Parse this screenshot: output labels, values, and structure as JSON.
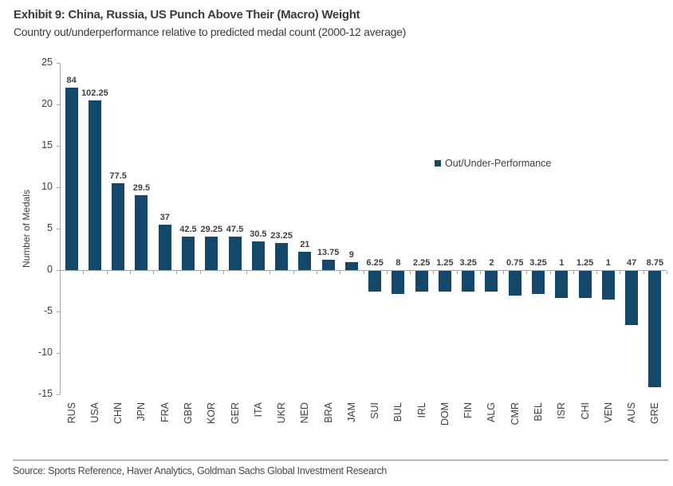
{
  "header": {
    "title": "Exhibit 9: China, Russia, US Punch Above Their (Macro) Weight",
    "subtitle": "Country out/underperformance relative to predicted medal count (2000-12 average)"
  },
  "chart_data": {
    "type": "bar",
    "title": "Exhibit 9: China, Russia, US Punch Above Their (Macro) Weight",
    "subtitle": "Country out/underperformance relative to predicted medal count (2000-12 average)",
    "categories": [
      "RUS",
      "USA",
      "CHN",
      "JPN",
      "FRA",
      "GBR",
      "KOR",
      "GER",
      "ITA",
      "UKR",
      "NED",
      "BRA",
      "JAM",
      "SUI",
      "BUL",
      "IRL",
      "DOM",
      "FIN",
      "ALG",
      "CMR",
      "BEL",
      "ISR",
      "CHI",
      "VEN",
      "AUS",
      "GRE"
    ],
    "values": [
      22,
      20.5,
      10.5,
      9,
      5.5,
      4,
      4,
      4,
      3.5,
      3.25,
      2.25,
      1.25,
      1,
      -2.5,
      -2.75,
      -2.5,
      -2.5,
      -2.5,
      -2.5,
      -3,
      -2.75,
      -3.25,
      -3.25,
      -3.5,
      -6.5,
      -14
    ],
    "data_labels": [
      "84",
      "102.25",
      "77.5",
      "29.5",
      "37",
      "42.5",
      "29.25",
      "47.5",
      "30.5",
      "23.25",
      "21",
      "13.75",
      "9",
      "6.25",
      "8",
      "2.25",
      "1.25",
      "3.25",
      "2",
      "0.75",
      "3.25",
      "1",
      "1.25",
      "1",
      "47",
      "8.75"
    ],
    "series_name": "Out/Under-Performance",
    "xlabel": "",
    "ylabel": "Number of Medals",
    "ylim": [
      -15,
      25
    ],
    "ytick_step": 5,
    "yticks": [
      25,
      20,
      15,
      10,
      5,
      0,
      -5,
      -10,
      -15
    ],
    "grid": false,
    "legend_position": "center-right",
    "bar_color": "#14486b",
    "label_note": "data labels show actual medal counts; bars show out/under-performance vs predicted"
  },
  "legend": {
    "label": "Out/Under-Performance"
  },
  "footer": {
    "source": "Source: Sports Reference, Haver Analytics, Goldman Sachs Global Investment Research"
  },
  "colors": {
    "bar": "#14486b",
    "axis": "#a6a6a6",
    "text": "#404040",
    "title": "#3b3b3b",
    "source": "#4a4a4a"
  }
}
